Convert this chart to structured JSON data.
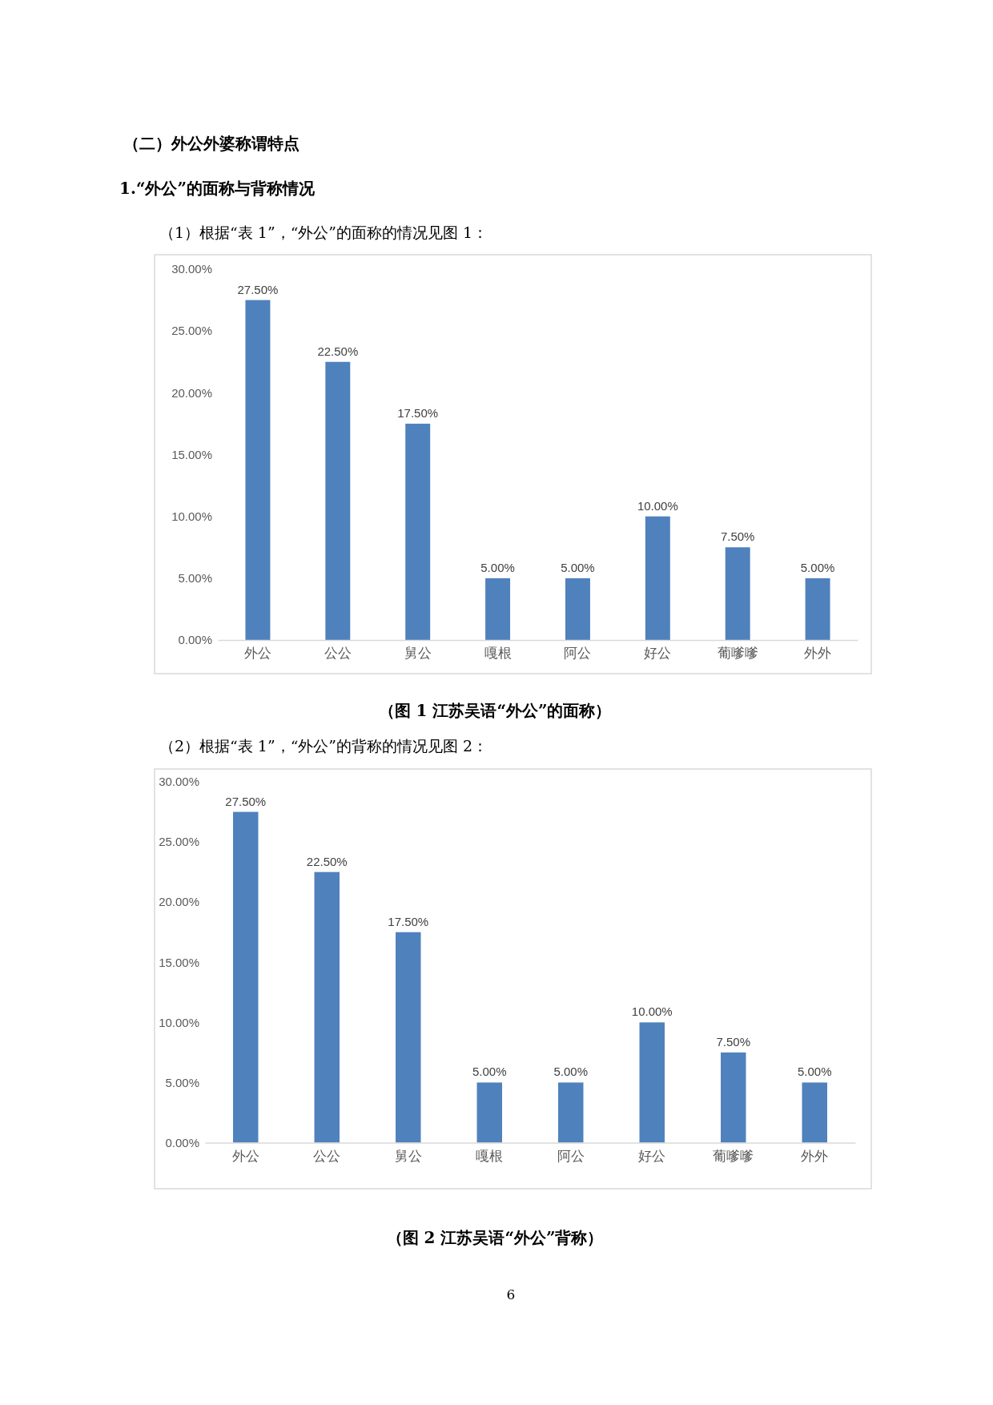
{
  "chart_data": [
    {
      "type": "bar",
      "title": "（图 1 江苏吴语“外公”的面称）",
      "annotations": [
        "（二）外公外婆称谓特点",
        "1.“外公”的面称与背称情况",
        "（1）根据“表 1”，“外公”的面称的情况见图 1："
      ],
      "categories": [
        "外公",
        "公公",
        "舅公",
        "嘎根",
        "阿公",
        "好公",
        "葡嗲嗲",
        "外外"
      ],
      "values": [
        27.5,
        22.5,
        17.5,
        5,
        5,
        10,
        7.5,
        5
      ],
      "value_labels": [
        "27.50%",
        "22.50%",
        "17.50%",
        "5.00%",
        "5.00%",
        "10.00%",
        "7.50%",
        "5.00%"
      ],
      "color": "#4f81bd",
      "ylim": [
        0,
        30
      ],
      "yticks": [
        {
          "value": 0,
          "label": "0.00%"
        },
        {
          "value": 5,
          "label": "5.00%"
        },
        {
          "value": 10,
          "label": "10.00%"
        },
        {
          "value": 15,
          "label": "15.00%"
        },
        {
          "value": 20,
          "label": "20.00%"
        },
        {
          "value": 25,
          "label": "25.00%"
        },
        {
          "value": 30,
          "label": "30.00%"
        }
      ],
      "grid": false
    },
    {
      "type": "bar",
      "title": "（图 2 江苏吴语“外公”背称）",
      "annotations": [
        "（2）根据“表 1”，“外公”的背称的情况见图 2：",
        "6"
      ],
      "categories": [
        "外公",
        "公公",
        "舅公",
        "嘎根",
        "阿公",
        "好公",
        "葡嗲嗲",
        "外外"
      ],
      "values": [
        27.5,
        22.5,
        17.5,
        5,
        5,
        10,
        7.5,
        5
      ],
      "value_labels": [
        "27.50%",
        "22.50%",
        "17.50%",
        "5.00%",
        "5.00%",
        "10.00%",
        "7.50%",
        "5.00%"
      ],
      "color": "#4f81bd",
      "ylim": [
        0,
        30
      ],
      "yticks": [
        {
          "value": 0,
          "label": "0.00%"
        },
        {
          "value": 5,
          "label": "5.00%"
        },
        {
          "value": 10,
          "label": "10.00%"
        },
        {
          "value": 15,
          "label": "15.00%"
        },
        {
          "value": 20,
          "label": "20.00%"
        },
        {
          "value": 25,
          "label": "25.00%"
        },
        {
          "value": 30,
          "label": "30.00%"
        }
      ],
      "grid": false
    }
  ]
}
